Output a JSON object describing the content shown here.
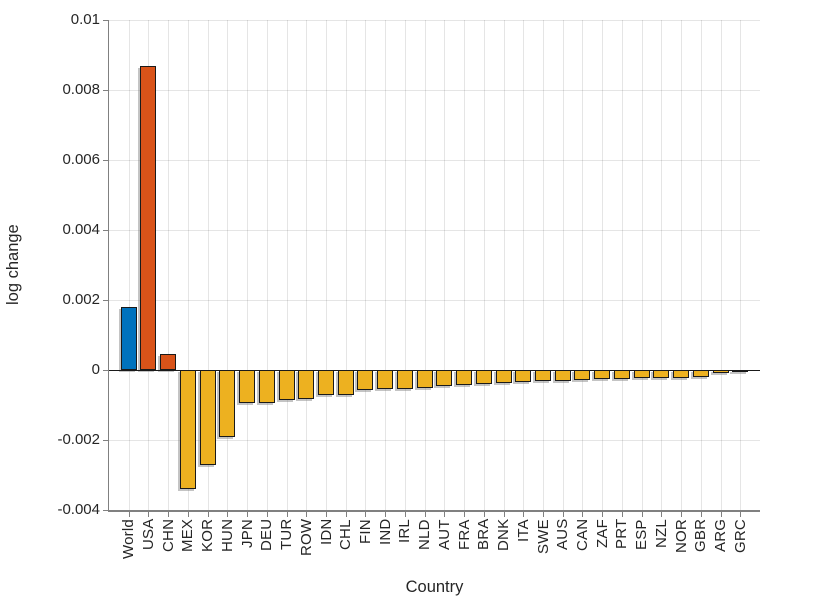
{
  "chart_data": {
    "type": "bar",
    "title": "",
    "xlabel": "Country",
    "ylabel": "log change",
    "ylim": [
      -0.004,
      0.01
    ],
    "yticks": [
      0.01,
      0.008,
      0.006,
      0.004,
      0.002,
      0,
      -0.002,
      -0.004
    ],
    "ytick_labels": [
      "0.01",
      "0.008",
      "0.006",
      "0.004",
      "0.002",
      "0",
      "-0.002",
      "-0.004"
    ],
    "grid": true,
    "legend": "none",
    "categories": [
      "World",
      "USA",
      "CHN",
      "MEX",
      "KOR",
      "HUN",
      "JPN",
      "DEU",
      "TUR",
      "ROW",
      "IDN",
      "CHL",
      "FIN",
      "IND",
      "IRL",
      "NLD",
      "AUT",
      "FRA",
      "BRA",
      "DNK",
      "ITA",
      "SWE",
      "AUS",
      "CAN",
      "ZAF",
      "PRT",
      "ESP",
      "NZL",
      "NOR",
      "GBR",
      "ARG",
      "GRC"
    ],
    "values": [
      0.0018,
      0.0087,
      0.00045,
      -0.0034,
      -0.0027,
      -0.0019,
      -0.00095,
      -0.00093,
      -0.00086,
      -0.00082,
      -0.00072,
      -0.0007,
      -0.00058,
      -0.00055,
      -0.00053,
      -0.00051,
      -0.00045,
      -0.00044,
      -0.00039,
      -0.00037,
      -0.00033,
      -0.00031,
      -0.0003,
      -0.00029,
      -0.00027,
      -0.00025,
      -0.00024,
      -0.00023,
      -0.00022,
      -0.00019,
      -9e-05,
      -7e-05
    ],
    "bar_colors": [
      "#0072BD",
      "#D95319",
      "#D95319",
      "#EDB120",
      "#EDB120",
      "#EDB120",
      "#EDB120",
      "#EDB120",
      "#EDB120",
      "#EDB120",
      "#EDB120",
      "#EDB120",
      "#EDB120",
      "#EDB120",
      "#EDB120",
      "#EDB120",
      "#EDB120",
      "#EDB120",
      "#EDB120",
      "#EDB120",
      "#EDB120",
      "#EDB120",
      "#EDB120",
      "#EDB120",
      "#EDB120",
      "#EDB120",
      "#EDB120",
      "#EDB120",
      "#EDB120",
      "#EDB120",
      "#EDB120",
      "#EDB120"
    ],
    "colors": {
      "bar_edge": "#1a1a1a",
      "baseline": "#1a1a1a",
      "axis": "#808080",
      "grid": "#e6e6e6",
      "text": "#262626",
      "background": "#ffffff",
      "series_blue": "#0072BD",
      "series_orange": "#D95319",
      "series_yellow": "#EDB120"
    }
  }
}
